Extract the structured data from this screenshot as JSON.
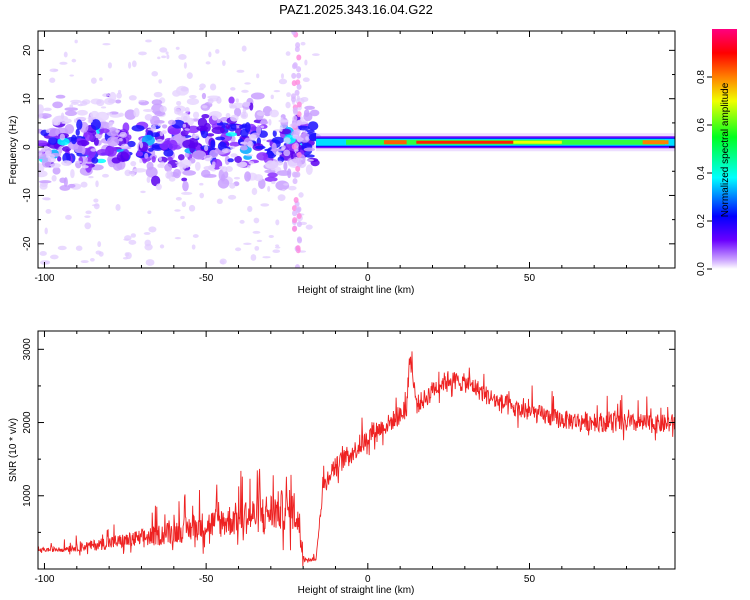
{
  "title": "PAZ1.2025.343.16.04.G22",
  "chart_data": [
    {
      "type": "heatmap",
      "xlabel": "Height of straight line (km)",
      "ylabel": "Frequency (Hz)",
      "xlim": [
        -102,
        95
      ],
      "ylim": [
        -25,
        24
      ],
      "xticks": [
        -100,
        -50,
        0,
        50
      ],
      "xtick_labels": [
        "-100",
        "-50",
        "0",
        "50"
      ],
      "yticks": [
        20,
        10,
        0,
        -10,
        -20
      ],
      "ytick_labels": [
        "20",
        "10",
        "0",
        "-10",
        "-20"
      ],
      "colorbar": {
        "label": "Normalized spectral amplitude",
        "range": [
          0,
          1
        ],
        "ticks": [
          0.0,
          0.2,
          0.4,
          0.6,
          0.8
        ],
        "tick_labels": [
          "0.0",
          "0.2",
          "0.4",
          "0.6",
          "0.8"
        ],
        "colors": [
          "#ffffff",
          "#6a00ff",
          "#0000ff",
          "#00d8ff",
          "#00ff40",
          "#f0ff00",
          "#ff8000",
          "#ff0000",
          "#ff0080"
        ]
      },
      "description_regions": [
        {
          "x_range": [
            -102,
            -16
          ],
          "freq_center": 1,
          "spread": 6,
          "max_amplitude": 0.35
        },
        {
          "x_range": [
            -16,
            95
          ],
          "freq_center": 1,
          "spread": 1,
          "max_amplitude": 0.95
        }
      ]
    },
    {
      "type": "line",
      "xlabel": "Height of straight line (km)",
      "ylabel": "SNR (10 * v/v)",
      "xlim": [
        -102,
        95
      ],
      "ylim": [
        0,
        3250
      ],
      "xticks": [
        -100,
        -50,
        0,
        50
      ],
      "xtick_labels": [
        "-100",
        "-50",
        "0",
        "50"
      ],
      "yticks": [
        1000,
        2000,
        3000
      ],
      "ytick_labels": [
        "1000",
        "2000",
        "3000"
      ],
      "color": "#ee2222",
      "series": [
        {
          "name": "SNR",
          "x": [
            -102,
            -95,
            -90,
            -85,
            -80,
            -75,
            -70,
            -65,
            -60,
            -55,
            -50,
            -45,
            -40,
            -35,
            -30,
            -25,
            -22,
            -20,
            -18,
            -16,
            -14,
            -12,
            -10,
            -8,
            -5,
            -2,
            0,
            2,
            5,
            8,
            10,
            12,
            13,
            15,
            18,
            20,
            22,
            25,
            28,
            30,
            33,
            35,
            38,
            40,
            45,
            50,
            55,
            60,
            65,
            70,
            75,
            80,
            85,
            90,
            95
          ],
          "values": [
            250,
            260,
            280,
            300,
            330,
            350,
            380,
            420,
            460,
            500,
            540,
            580,
            620,
            660,
            700,
            720,
            700,
            150,
            120,
            130,
            1050,
            1250,
            1350,
            1450,
            1550,
            1650,
            1750,
            1850,
            1900,
            2000,
            2050,
            2150,
            2900,
            2200,
            2300,
            2400,
            2480,
            2550,
            2520,
            2500,
            2450,
            2380,
            2300,
            2250,
            2150,
            2100,
            2050,
            2000,
            1980,
            1970,
            1960,
            1950,
            1950,
            1940,
            1950
          ]
        }
      ]
    }
  ]
}
